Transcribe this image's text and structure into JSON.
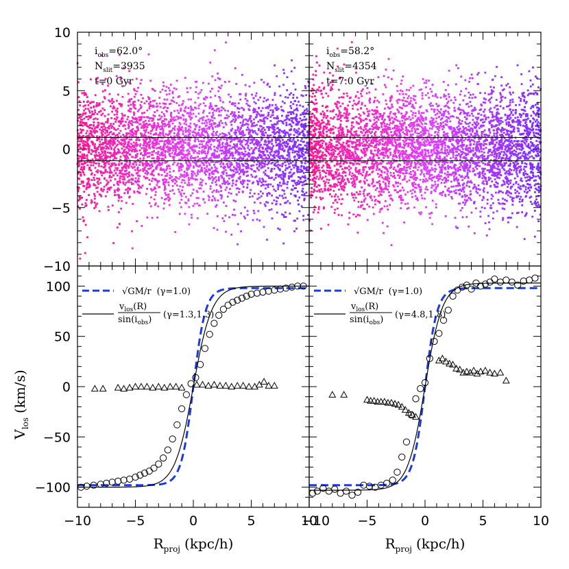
{
  "colors": {
    "scatter_left": "#ff1493",
    "scatter_mid": "#e040fb",
    "scatter_right": "#7b2cff",
    "model_curve": "#1a3adb",
    "fit_curve": "#000000"
  },
  "chart_data": [
    {
      "type": "scatter",
      "panel": "top-left",
      "annotations": {
        "i_main": "i",
        "i_sub": "obs",
        "i_val": "=62.0°",
        "n_main": "N",
        "n_sub": "slit",
        "n_val": "=3935",
        "t_text": "t=0 Gyr"
      },
      "xlim": [
        -10,
        10
      ],
      "ylim": [
        -10,
        10
      ],
      "yticks": [
        "10",
        "5",
        "0",
        "−5",
        "−10"
      ],
      "reference_lines_y": [
        1,
        -1
      ],
      "point_count_approx": 3935,
      "color_gradient": "magenta (left) to violet (right)"
    },
    {
      "type": "scatter",
      "panel": "top-right",
      "annotations": {
        "i_main": "i",
        "i_sub": "obs",
        "i_val": "=58.2°",
        "n_main": "N",
        "n_sub": "slit",
        "n_val": "=4354",
        "t_text": "t=7.0 Gyr"
      },
      "xlim": [
        -10,
        10
      ],
      "ylim": [
        -10,
        10
      ],
      "reference_lines_y": [
        1,
        -1
      ],
      "point_count_approx": 4354,
      "color_gradient": "magenta (left) to violet (right)"
    },
    {
      "type": "line",
      "panel": "bottom-left",
      "xlim": [
        -10,
        10
      ],
      "ylim": [
        -120,
        120
      ],
      "xticks": [
        "−10",
        "−5",
        "0",
        "5",
        "10"
      ],
      "yticks": [
        "100",
        "50",
        "0",
        "−50",
        "−100"
      ],
      "legend": {
        "dashed_formula": "√GM/r",
        "dashed_gamma": "(γ=1.0)",
        "solid_num": "v",
        "solid_num_sub": "los",
        "solid_num_tail": "(R)",
        "solid_den": "sin(i",
        "solid_den_sub": "obs",
        "solid_den_tail": ")",
        "solid_gamma": "(γ=1.3,1.3)"
      },
      "series": [
        {
          "marker": "circle",
          "x": [
            -9.7,
            -9.2,
            -8.6,
            -8.0,
            -7.5,
            -7.0,
            -6.5,
            -6.0,
            -5.5,
            -5.0,
            -4.6,
            -4.2,
            -3.8,
            -3.4,
            -3.0,
            -2.6,
            -2.2,
            -1.8,
            -1.4,
            -1.0,
            -0.6,
            -0.2,
            0.2,
            0.6,
            1.0,
            1.4,
            1.8,
            2.2,
            2.6,
            3.0,
            3.4,
            3.8,
            4.2,
            4.6,
            5.0,
            5.5,
            6.0,
            6.5,
            7.0,
            7.5,
            8.0,
            8.5,
            9.0,
            9.5
          ],
          "y": [
            -100,
            -99,
            -98,
            -97,
            -96,
            -95,
            -94,
            -93,
            -92,
            -90,
            -88,
            -86,
            -84,
            -81,
            -77,
            -71,
            -63,
            -52,
            -38,
            -22,
            -8,
            3,
            9,
            22,
            38,
            52,
            63,
            71,
            77,
            81,
            84,
            86,
            88,
            90,
            92,
            93,
            94,
            95,
            96,
            97,
            98,
            99,
            100,
            100
          ]
        },
        {
          "marker": "triangle",
          "x": [
            -8.5,
            -7.8,
            -6.5,
            -6.0,
            -5.5,
            -5.0,
            -4.5,
            -4.0,
            -3.5,
            -3.0,
            -2.5,
            -2.0,
            -1.5,
            -1.0,
            0.3,
            0.8,
            1.3,
            1.8,
            2.3,
            2.8,
            3.3,
            3.8,
            4.3,
            4.8,
            5.3,
            5.7,
            6.1,
            6.5,
            7.0
          ],
          "y": [
            -2,
            -2,
            -1,
            -2,
            -1,
            0,
            0,
            0,
            -1,
            0,
            -1,
            0,
            0,
            -1,
            2,
            2,
            1,
            2,
            1,
            1,
            0,
            1,
            1,
            0,
            0,
            2,
            5,
            1,
            1
          ]
        }
      ],
      "model_vmax": 98,
      "fit_vmax": 100
    },
    {
      "type": "line",
      "panel": "bottom-right",
      "xlim": [
        -10,
        10
      ],
      "ylim": [
        -120,
        120
      ],
      "xticks": [
        "−10",
        "−5",
        "0",
        "5",
        "10"
      ],
      "legend": {
        "dashed_formula": "√GM/r",
        "dashed_gamma": "(γ=1.0)",
        "solid_num": "v",
        "solid_num_sub": "los",
        "solid_num_tail": "(R)",
        "solid_den": "sin(i",
        "solid_den_sub": "obs",
        "solid_den_tail": ")",
        "solid_gamma": "(γ=4.8,1.8)"
      },
      "series": [
        {
          "marker": "circle",
          "x": [
            -9.7,
            -9.3,
            -8.8,
            -8.3,
            -7.8,
            -7.3,
            -6.8,
            -6.3,
            -5.8,
            -5.3,
            -4.8,
            -4.3,
            -3.8,
            -3.3,
            -2.8,
            -2.4,
            -2.0,
            -1.6,
            -1.2,
            -0.8,
            -0.4,
            0.0,
            0.4,
            0.8,
            1.2,
            1.6,
            2.0,
            2.4,
            2.8,
            3.2,
            3.6,
            4.0,
            4.4,
            4.8,
            5.2,
            5.6,
            6.0,
            6.5,
            7.0,
            7.5,
            8.0,
            8.5,
            9.0,
            9.5
          ],
          "y": [
            -106,
            -104,
            -101,
            -104,
            -102,
            -106,
            -104,
            -108,
            -105,
            -98,
            -99,
            -100,
            -98,
            -96,
            -93,
            -85,
            -70,
            -55,
            -28,
            -12,
            -2,
            4,
            28,
            45,
            53,
            66,
            76,
            90,
            96,
            99,
            101,
            97,
            103,
            100,
            102,
            104,
            107,
            104,
            106,
            104,
            101,
            105,
            106,
            108
          ]
        },
        {
          "marker": "triangle",
          "x": [
            -8.0,
            -7.0,
            -5.0,
            -4.7,
            -4.4,
            -4.1,
            -3.8,
            -3.5,
            -3.2,
            -2.9,
            -2.6,
            -2.3,
            -2.0,
            -1.7,
            -1.4,
            -1.1,
            -0.8,
            1.2,
            1.5,
            1.8,
            2.1,
            2.4,
            2.7,
            3.0,
            3.3,
            3.6,
            3.9,
            4.2,
            4.5,
            4.8,
            5.2,
            5.6,
            6.0,
            6.5,
            7.0
          ],
          "y": [
            -8,
            -8,
            -13,
            -14,
            -14,
            -15,
            -15,
            -15,
            -16,
            -16,
            -17,
            -18,
            -20,
            -23,
            -26,
            -28,
            -30,
            26,
            28,
            25,
            23,
            22,
            18,
            17,
            14,
            15,
            14,
            16,
            13,
            15,
            16,
            14,
            13,
            14,
            6
          ]
        }
      ],
      "model_vmax": 98,
      "fit_vmax": 103
    }
  ],
  "axes": {
    "ylabel_main": "V",
    "ylabel_sub": "los",
    "ylabel_unit": "(km/s)",
    "xlabel_main": "R",
    "xlabel_sub": "proj",
    "xlabel_unit": "(kpc/h)"
  }
}
